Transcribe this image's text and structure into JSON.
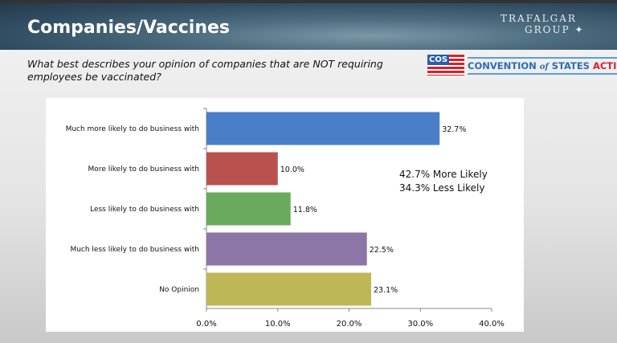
{
  "header": {
    "title": "Companies/Vaccines",
    "logo_text": "The Trafalgar Group"
  },
  "question": "What best describes your opinion of companies that are NOT requiring employees be vaccinated?",
  "cos_logo": {
    "abbr": "COS",
    "text_a": "CONVENTION ",
    "text_of": "of",
    "text_b": " STATES ",
    "text_c": "ACTION"
  },
  "summary": {
    "line1": "42.7% More Likely",
    "line2": "34.3% Less Likely"
  },
  "chart_data": {
    "type": "bar",
    "orientation": "horizontal",
    "categories": [
      "Much more likely to do business with",
      "More likely to do business with",
      "Less likely to do business with",
      "Much less likely to do business with",
      "No Opinion"
    ],
    "values": [
      32.7,
      10.0,
      11.8,
      22.5,
      23.1
    ],
    "data_labels": [
      "32.7%",
      "10.0%",
      "11.8%",
      "22.5%",
      "23.1%"
    ],
    "colors": [
      "#4a7ec9",
      "#b9524f",
      "#6aaa5e",
      "#8b76a6",
      "#bdb855"
    ],
    "xlim": [
      0,
      40
    ],
    "xticks": [
      "0.0%",
      "10.0%",
      "20.0%",
      "30.0%",
      "40.0%"
    ],
    "grid": false
  }
}
